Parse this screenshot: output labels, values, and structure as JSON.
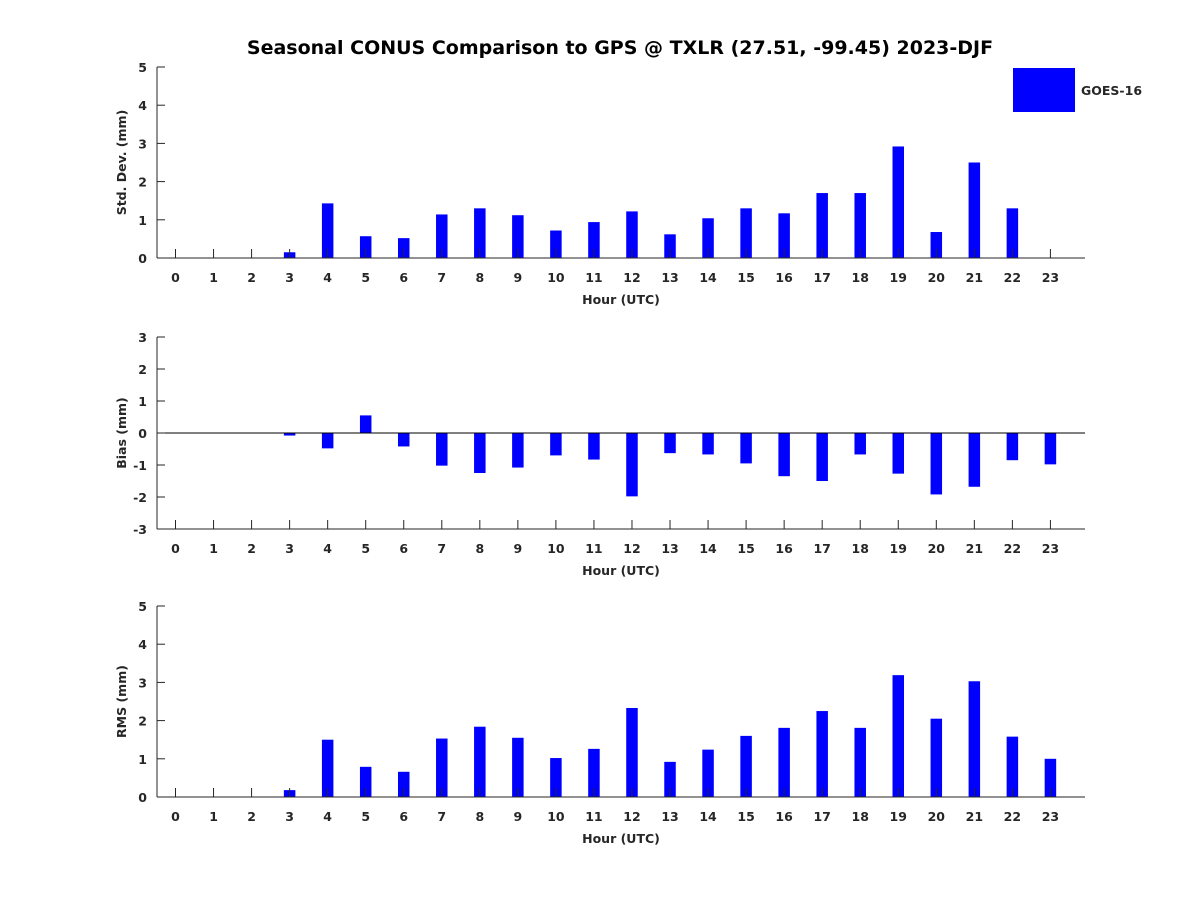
{
  "figure": {
    "title": "Seasonal CONUS Comparison to GPS @ TXLR (27.51, -99.45) 2023-DJF",
    "legend": {
      "label": "GOES-16",
      "color": "#0000ff",
      "placement": "top-right"
    }
  },
  "chart_data": [
    {
      "type": "bar",
      "xlabel": "Hour (UTC)",
      "ylabel": "Std. Dev. (mm)",
      "ylim": [
        0,
        5
      ],
      "yticks": [
        0,
        1,
        2,
        3,
        4,
        5
      ],
      "categories": [
        "0",
        "1",
        "2",
        "3",
        "4",
        "5",
        "6",
        "7",
        "8",
        "9",
        "10",
        "11",
        "12",
        "13",
        "14",
        "15",
        "16",
        "17",
        "18",
        "19",
        "20",
        "21",
        "22",
        "23"
      ],
      "series": [
        {
          "name": "GOES-16",
          "color": "#0000ff",
          "values": [
            0,
            0,
            0,
            0.15,
            1.43,
            0.57,
            0.52,
            1.14,
            1.3,
            1.12,
            0.72,
            0.94,
            1.22,
            0.62,
            1.04,
            1.3,
            1.17,
            1.7,
            1.7,
            2.92,
            0.68,
            2.5,
            1.3,
            0
          ]
        }
      ],
      "grid": false
    },
    {
      "type": "bar",
      "xlabel": "Hour (UTC)",
      "ylabel": "Bias (mm)",
      "ylim": [
        -3,
        3
      ],
      "yticks": [
        -3,
        -2,
        -1,
        0,
        1,
        2,
        3
      ],
      "categories": [
        "0",
        "1",
        "2",
        "3",
        "4",
        "5",
        "6",
        "7",
        "8",
        "9",
        "10",
        "11",
        "12",
        "13",
        "14",
        "15",
        "16",
        "17",
        "18",
        "19",
        "20",
        "21",
        "22",
        "23"
      ],
      "series": [
        {
          "name": "GOES-16",
          "color": "#0000ff",
          "values": [
            0,
            0,
            0,
            -0.08,
            -0.48,
            0.55,
            -0.42,
            -1.02,
            -1.25,
            -1.08,
            -0.7,
            -0.83,
            -1.98,
            -0.63,
            -0.67,
            -0.95,
            -1.35,
            -1.5,
            -0.67,
            -1.27,
            -1.92,
            -1.68,
            -0.85,
            -0.98
          ]
        }
      ],
      "grid": false
    },
    {
      "type": "bar",
      "xlabel": "Hour (UTC)",
      "ylabel": "RMS (mm)",
      "ylim": [
        0,
        5
      ],
      "yticks": [
        0,
        1,
        2,
        3,
        4,
        5
      ],
      "categories": [
        "0",
        "1",
        "2",
        "3",
        "4",
        "5",
        "6",
        "7",
        "8",
        "9",
        "10",
        "11",
        "12",
        "13",
        "14",
        "15",
        "16",
        "17",
        "18",
        "19",
        "20",
        "21",
        "22",
        "23"
      ],
      "series": [
        {
          "name": "GOES-16",
          "color": "#0000ff",
          "values": [
            0,
            0,
            0,
            0.18,
            1.5,
            0.79,
            0.66,
            1.53,
            1.84,
            1.55,
            1.02,
            1.26,
            2.33,
            0.92,
            1.24,
            1.6,
            1.81,
            2.25,
            1.81,
            3.19,
            2.05,
            3.03,
            1.58,
            1.0
          ]
        }
      ],
      "grid": false
    }
  ]
}
